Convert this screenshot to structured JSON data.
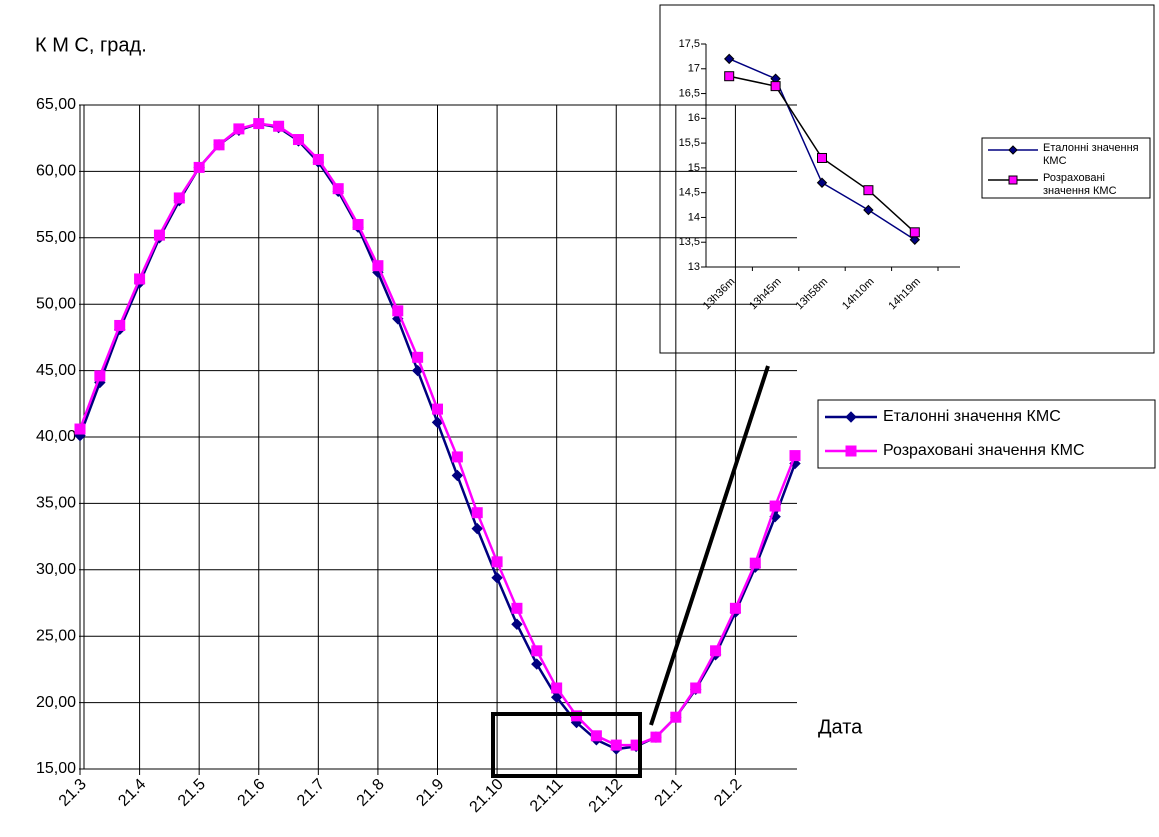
{
  "chart_data": [
    {
      "type": "line",
      "y_label": "К М С, град.",
      "x_label": "Дата",
      "categories": [
        "21.3",
        null,
        null,
        "21.4",
        null,
        null,
        "21.5",
        null,
        null,
        "21.6",
        null,
        null,
        "21.7",
        null,
        null,
        "21.8",
        null,
        null,
        "21.9",
        null,
        null,
        "21.10",
        null,
        null,
        "21.11",
        null,
        null,
        "21.12",
        null,
        null,
        "21.1",
        null,
        null,
        "21.2",
        null,
        null,
        null
      ],
      "series": [
        {
          "name": "Еталонні значення КМС",
          "color": "#000080",
          "marker": "diamond",
          "values": [
            40.1,
            44.1,
            48.1,
            51.6,
            55.0,
            57.8,
            60.3,
            62.0,
            63.1,
            63.6,
            63.3,
            62.3,
            60.7,
            58.5,
            55.8,
            52.4,
            48.9,
            45.0,
            41.1,
            37.1,
            33.1,
            29.4,
            25.9,
            22.9,
            20.4,
            18.5,
            17.2,
            16.5,
            16.7,
            17.4,
            18.9,
            21.0,
            23.6,
            26.8,
            30.2,
            34.0,
            38.0
          ]
        },
        {
          "name": "Розраховані значення КМС",
          "color": "#ff00ff",
          "marker": "square",
          "values": [
            40.6,
            44.6,
            48.4,
            51.9,
            55.2,
            58.0,
            60.3,
            62.0,
            63.2,
            63.6,
            63.4,
            62.4,
            60.9,
            58.7,
            56.0,
            52.9,
            49.5,
            46.0,
            42.1,
            38.5,
            34.3,
            30.6,
            27.1,
            23.9,
            21.1,
            19.0,
            17.5,
            16.8,
            16.8,
            17.4,
            18.9,
            21.1,
            23.9,
            27.1,
            30.5,
            34.8,
            38.6
          ]
        }
      ],
      "ylim": [
        15,
        65
      ],
      "yticks": [
        {
          "value": 15,
          "label": "15,00"
        },
        {
          "value": 20,
          "label": "20,00"
        },
        {
          "value": 25,
          "label": "25,00"
        },
        {
          "value": 30,
          "label": "30,00"
        },
        {
          "value": 35,
          "label": "35,00"
        },
        {
          "value": 40,
          "label": "40,00"
        },
        {
          "value": 45,
          "label": "45,00"
        },
        {
          "value": 50,
          "label": "50,00"
        },
        {
          "value": 55,
          "label": "55,00"
        },
        {
          "value": 60,
          "label": "60,00"
        },
        {
          "value": 65,
          "label": "65,00"
        }
      ],
      "grid": true,
      "legend": "right"
    },
    {
      "type": "line",
      "categories": [
        "13h36m",
        "13h45m",
        "13h58m",
        "14h10m",
        "14h19m"
      ],
      "series": [
        {
          "name": "Еталонні значення КМС",
          "color": "#000080",
          "marker": "diamond",
          "marker_color": "#000080",
          "values": [
            17.2,
            16.8,
            14.7,
            14.15,
            13.55
          ]
        },
        {
          "name": "Розраховані значення КМС",
          "color": "#000000",
          "marker": "square",
          "marker_color": "#ff00ff",
          "values": [
            16.85,
            16.65,
            15.2,
            14.55,
            13.7
          ]
        }
      ],
      "ylim": [
        13,
        17.5
      ],
      "yticks": [
        13,
        {
          "value": 13.5,
          "label": "13,5"
        },
        14,
        {
          "value": 14.5,
          "label": "14,5"
        },
        15,
        {
          "value": 15.5,
          "label": "15,5"
        },
        16,
        {
          "value": 16.5,
          "label": "16,5"
        },
        17,
        {
          "value": 17.5,
          "label": "17,5"
        }
      ],
      "grid": false,
      "legend": "right"
    }
  ]
}
